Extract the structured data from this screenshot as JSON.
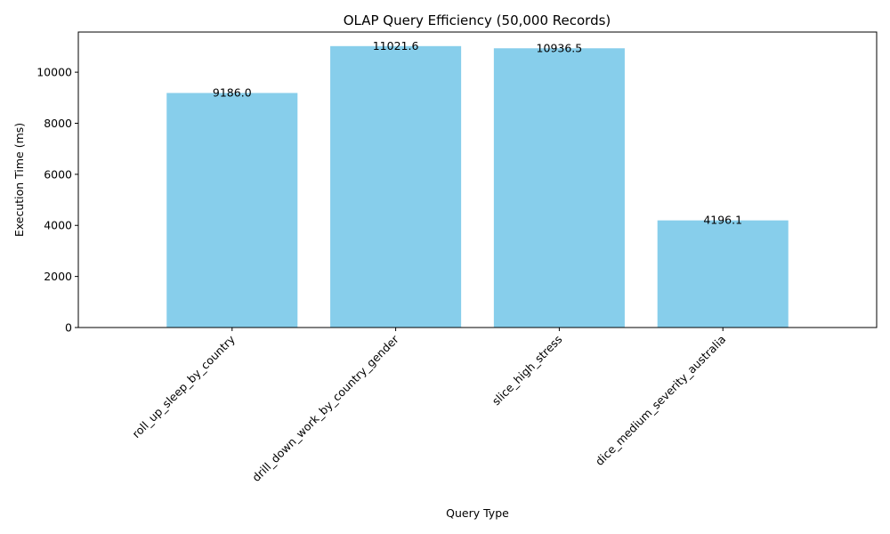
{
  "chart_data": {
    "type": "bar",
    "title": "OLAP Query Efficiency (50,000 Records)",
    "xlabel": "Query Type",
    "ylabel": "Execution Time (ms)",
    "categories": [
      "roll_up_sleep_by_country",
      "drill_down_work_by_country_gender",
      "slice_high_stress",
      "dice_medium_severity_australia"
    ],
    "values": [
      9186.0,
      11021.6,
      10936.5,
      4196.1
    ],
    "data_labels": [
      "9186.0",
      "11021.6",
      "10936.5",
      "4196.1"
    ],
    "ylim": [
      0,
      11572.68
    ],
    "yticks": [
      0,
      2000,
      4000,
      6000,
      8000,
      10000
    ],
    "ytick_labels": [
      "0",
      "2000",
      "4000",
      "6000",
      "8000",
      "10000"
    ],
    "bar_color": "#87ceeb",
    "grid": false,
    "legend": "none"
  }
}
